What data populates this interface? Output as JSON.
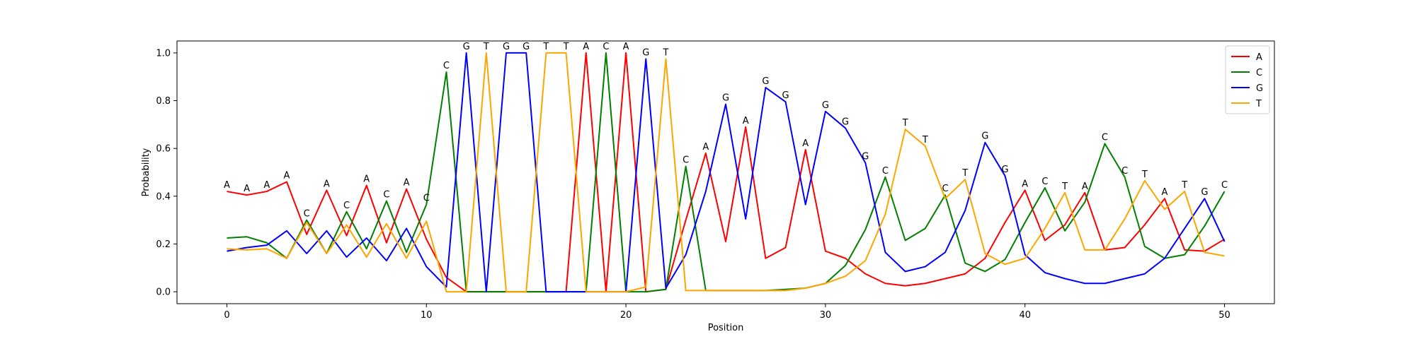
{
  "chart_data": {
    "type": "line",
    "xlabel": "Position",
    "ylabel": "Probability",
    "xlim": [
      -2.5,
      52.5
    ],
    "ylim": [
      -0.05,
      1.05
    ],
    "xticks": [
      0,
      10,
      20,
      30,
      40,
      50
    ],
    "yticks": [
      0.0,
      0.2,
      0.4,
      0.6,
      0.8,
      1.0
    ],
    "grid": false,
    "legend_position": "top-right",
    "x": [
      0,
      1,
      2,
      3,
      4,
      5,
      6,
      7,
      8,
      9,
      10,
      11,
      12,
      13,
      14,
      15,
      16,
      17,
      18,
      19,
      20,
      21,
      22,
      23,
      24,
      25,
      26,
      27,
      28,
      29,
      30,
      31,
      32,
      33,
      34,
      35,
      36,
      37,
      38,
      39,
      40,
      41,
      42,
      43,
      44,
      45,
      46,
      47,
      48,
      49,
      50
    ],
    "series": [
      {
        "name": "A",
        "color": "#ff0000",
        "values": [
          0.42,
          0.405,
          0.42,
          0.46,
          0.24,
          0.425,
          0.235,
          0.445,
          0.205,
          0.43,
          0.22,
          0.06,
          0.0,
          0.0,
          0.0,
          0.0,
          0.0,
          0.0,
          1.0,
          0.0,
          1.0,
          0.0,
          0.01,
          0.3,
          0.58,
          0.21,
          0.69,
          0.14,
          0.185,
          0.595,
          0.17,
          0.14,
          0.075,
          0.035,
          0.025,
          0.035,
          0.055,
          0.075,
          0.14,
          0.29,
          0.425,
          0.215,
          0.28,
          0.415,
          0.175,
          0.185,
          0.28,
          0.39,
          0.175,
          0.17,
          0.22
        ]
      },
      {
        "name": "C",
        "color": "#008000",
        "values": [
          0.225,
          0.23,
          0.205,
          0.14,
          0.3,
          0.16,
          0.335,
          0.18,
          0.38,
          0.165,
          0.365,
          0.92,
          0.0,
          0.0,
          0.0,
          0.0,
          0.0,
          0.0,
          0.0,
          1.0,
          0.0,
          0.0,
          0.01,
          0.525,
          0.005,
          0.005,
          0.005,
          0.005,
          0.01,
          0.015,
          0.035,
          0.11,
          0.26,
          0.48,
          0.215,
          0.265,
          0.405,
          0.12,
          0.085,
          0.135,
          0.29,
          0.435,
          0.255,
          0.375,
          0.62,
          0.48,
          0.19,
          0.14,
          0.155,
          0.275,
          0.42
        ]
      },
      {
        "name": "G",
        "color": "#0000ff",
        "values": [
          0.17,
          0.185,
          0.195,
          0.255,
          0.16,
          0.255,
          0.145,
          0.225,
          0.13,
          0.265,
          0.105,
          0.02,
          1.0,
          0.0,
          1.0,
          1.0,
          0.0,
          0.0,
          0.0,
          0.0,
          0.0,
          0.975,
          0.015,
          0.155,
          0.42,
          0.785,
          0.305,
          0.855,
          0.795,
          0.365,
          0.755,
          0.685,
          0.54,
          0.165,
          0.085,
          0.105,
          0.165,
          0.34,
          0.625,
          0.485,
          0.155,
          0.08,
          0.055,
          0.035,
          0.035,
          0.055,
          0.075,
          0.14,
          0.265,
          0.39,
          0.21
        ]
      },
      {
        "name": "T",
        "color": "#ffa500",
        "values": [
          0.18,
          0.175,
          0.18,
          0.14,
          0.29,
          0.16,
          0.28,
          0.145,
          0.285,
          0.14,
          0.295,
          0.0,
          0.0,
          1.0,
          0.0,
          0.0,
          1.0,
          1.0,
          0.0,
          0.0,
          0.0,
          0.02,
          0.975,
          0.005,
          0.005,
          0.005,
          0.005,
          0.005,
          0.005,
          0.015,
          0.035,
          0.065,
          0.13,
          0.325,
          0.68,
          0.61,
          0.39,
          0.47,
          0.16,
          0.115,
          0.14,
          0.265,
          0.415,
          0.175,
          0.175,
          0.305,
          0.465,
          0.345,
          0.42,
          0.165,
          0.15
        ]
      }
    ],
    "point_labels": [
      "A",
      "A",
      "A",
      "A",
      "C",
      "A",
      "C",
      "A",
      "C",
      "A",
      "C",
      "C",
      "G",
      "T",
      "G",
      "G",
      "T",
      "T",
      "A",
      "C",
      "A",
      "G",
      "T",
      "C",
      "A",
      "G",
      "A",
      "G",
      "G",
      "A",
      "G",
      "G",
      "G",
      "C",
      "T",
      "T",
      "C",
      "T",
      "G",
      "G",
      "A",
      "C",
      "T",
      "A",
      "C",
      "C",
      "T",
      "A",
      "T",
      "G",
      "C"
    ]
  }
}
